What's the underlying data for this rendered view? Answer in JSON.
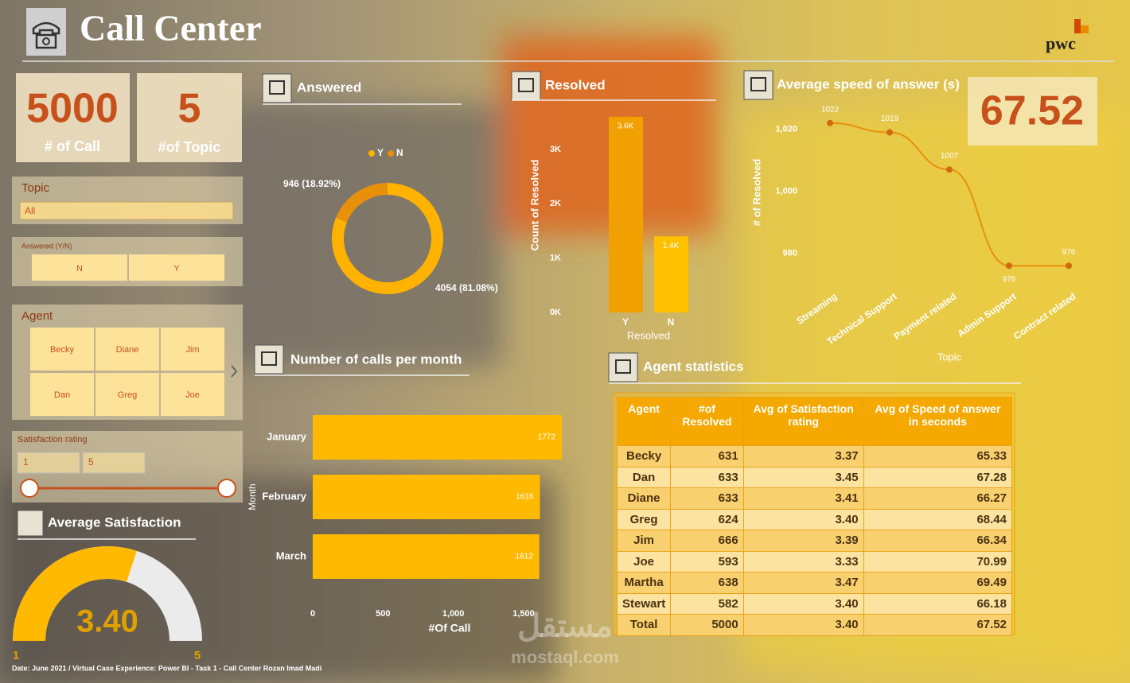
{
  "header": {
    "title": "Call Center",
    "logo": "pwc"
  },
  "cards": [
    {
      "value": 5000,
      "label": "# of Call"
    },
    {
      "value": 5,
      "label": "#of Topic"
    },
    {
      "value": 67.52
    }
  ],
  "filters": {
    "topic": {
      "label": "Topic",
      "selected": "All"
    },
    "answered": {
      "label": "Answered (Y/N)",
      "options": [
        "N",
        "Y"
      ]
    },
    "agent": {
      "label": "Agent",
      "options": [
        "Becky",
        "Diane",
        "Jim",
        "Dan",
        "Greg",
        "Joe"
      ]
    },
    "satisfaction": {
      "label": "Satisfaction rating",
      "range": [
        1,
        5
      ]
    }
  },
  "chart_data": [
    {
      "type": "pie",
      "title": "Answered",
      "categories": [
        "Y",
        "N"
      ],
      "values": [
        4054,
        946
      ],
      "value_labels": [
        "4054 (81.08%)",
        "946 (18.92%)"
      ],
      "colors": [
        "#ffb300",
        "#e8900a"
      ]
    },
    {
      "type": "bar",
      "title": "Resolved",
      "categories": [
        "Y",
        "N"
      ],
      "values": [
        3600,
        1400
      ],
      "value_labels": [
        "3.6K",
        "1.4K"
      ],
      "colors": [
        "#f0a000",
        "#ffc000"
      ],
      "x_label": "Resolved",
      "y_label": "Count of Resolved",
      "ylim": [
        0,
        3700
      ],
      "yticks": [
        {
          "value": 0,
          "label": "0K"
        },
        {
          "value": 1000,
          "label": "1K"
        },
        {
          "value": 2000,
          "label": "2K"
        },
        {
          "value": 3000,
          "label": "3K"
        }
      ]
    },
    {
      "type": "line",
      "title": "Average speed of answer (s)",
      "categories": [
        "Streaming",
        "Technical Support",
        "Payment related",
        "Admin Support",
        "Contract related"
      ],
      "values": [
        1022,
        1019,
        1007,
        976,
        976
      ],
      "color": "#e8900a",
      "x_label": "Topic",
      "y_label": "# of Resolved",
      "ylim": [
        974,
        1024
      ],
      "yticks": [
        980,
        {
          "value": 1000,
          "label": "1,000"
        },
        {
          "value": 1020,
          "label": "1,020"
        }
      ]
    },
    {
      "type": "hbar",
      "title": "Number of calls per month",
      "categories": [
        "January",
        "February",
        "March"
      ],
      "values": [
        1772,
        1616,
        1612
      ],
      "color": "#ffb900",
      "x_label": "#Of Call",
      "y_label": "Month",
      "xlim": [
        0,
        1800
      ],
      "xticks": [
        0,
        500,
        {
          "value": 1000,
          "label": "1,000"
        },
        {
          "value": 1500,
          "label": "1,500"
        }
      ]
    },
    {
      "type": "gauge",
      "title": "Average Satisfaction",
      "values": [
        3.4
      ],
      "value_labels": [
        "3.40"
      ],
      "color": "#ffb900",
      "ylim": [
        1,
        5
      ],
      "yticks": [
        1,
        5
      ]
    }
  ],
  "table": {
    "title": "Agent statistics",
    "columns": [
      "Agent",
      "#of Resolved",
      "Avg of Satisfaction rating",
      "Avg of Speed of answer in seconds"
    ],
    "rows": [
      [
        "Becky",
        "631",
        "3.37",
        "65.33"
      ],
      [
        "Dan",
        "633",
        "3.45",
        "67.28"
      ],
      [
        "Diane",
        "633",
        "3.41",
        "66.27"
      ],
      [
        "Greg",
        "624",
        "3.40",
        "68.44"
      ],
      [
        "Jim",
        "666",
        "3.39",
        "66.34"
      ],
      [
        "Joe",
        "593",
        "3.33",
        "70.99"
      ],
      [
        "Martha",
        "638",
        "3.47",
        "69.49"
      ],
      [
        "Stewart",
        "582",
        "3.40",
        "66.18"
      ],
      [
        "Total",
        "5000",
        "3.40",
        "67.52"
      ]
    ]
  },
  "footer": "Date: June 2021 / Virtual Case Experience: Power BI - Task 1 - Call Center Rozan Imad Madi",
  "watermark": [
    "مستقل",
    "mostaql.com"
  ]
}
